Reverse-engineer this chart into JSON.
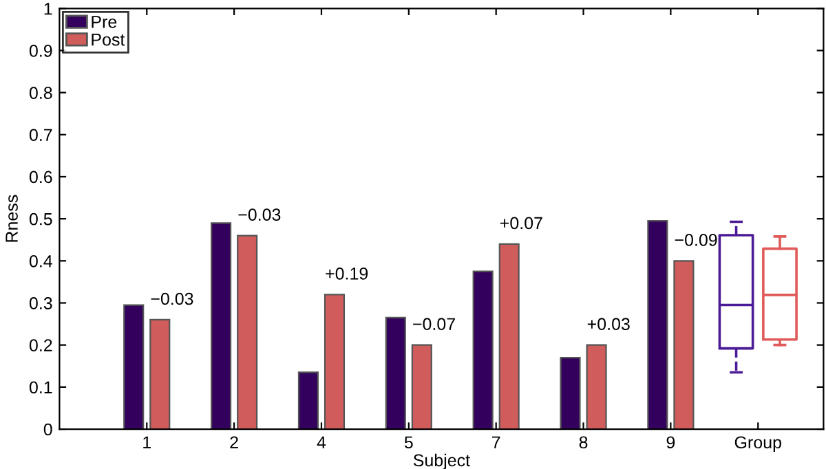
{
  "chart_data": {
    "type": "bar",
    "xlabel": "Subject",
    "ylabel": "Rness",
    "categories": [
      "1",
      "2",
      "4",
      "5",
      "7",
      "8",
      "9",
      "Group"
    ],
    "series": [
      {
        "name": "Pre",
        "color": "#33005e",
        "values": [
          0.295,
          0.49,
          0.135,
          0.265,
          0.375,
          0.17,
          0.495,
          null
        ]
      },
      {
        "name": "Post",
        "color": "#d05c5c",
        "values": [
          0.26,
          0.46,
          0.32,
          0.2,
          0.44,
          0.2,
          0.4,
          null
        ]
      },
      {
        "type": "box",
        "color": "#4b1a96",
        "line_style": "dashed",
        "boxes": [
          null,
          null,
          null,
          null,
          null,
          null,
          null,
          {
            "low": 0.135,
            "q1": 0.192,
            "median": 0.295,
            "q3": 0.461,
            "high": 0.493
          }
        ]
      },
      {
        "type": "box",
        "color": "#e05a5a",
        "line_style": "solid",
        "boxes": [
          null,
          null,
          null,
          null,
          null,
          null,
          null,
          {
            "low": 0.2,
            "q1": 0.213,
            "median": 0.319,
            "q3": 0.429,
            "high": 0.458
          }
        ]
      }
    ],
    "annotations": [
      {
        "text": "−0.03",
        "x": "1",
        "y": 0.26
      },
      {
        "text": "−0.03",
        "x": "2",
        "y": 0.46
      },
      {
        "text": "+0.19",
        "x": "4",
        "y": 0.32
      },
      {
        "text": "−0.07",
        "x": "5",
        "y": 0.2
      },
      {
        "text": "+0.07",
        "x": "7",
        "y": 0.44
      },
      {
        "text": "+0.03",
        "x": "8",
        "y": 0.2
      },
      {
        "text": "−0.09",
        "x": "9",
        "y": 0.4
      }
    ],
    "ylim": [
      0,
      1
    ],
    "yticks": [
      0,
      0.1,
      0.2,
      0.3,
      0.4,
      0.5,
      0.6,
      0.7,
      0.8,
      0.9,
      1
    ],
    "grid": false,
    "legend": "top left"
  }
}
